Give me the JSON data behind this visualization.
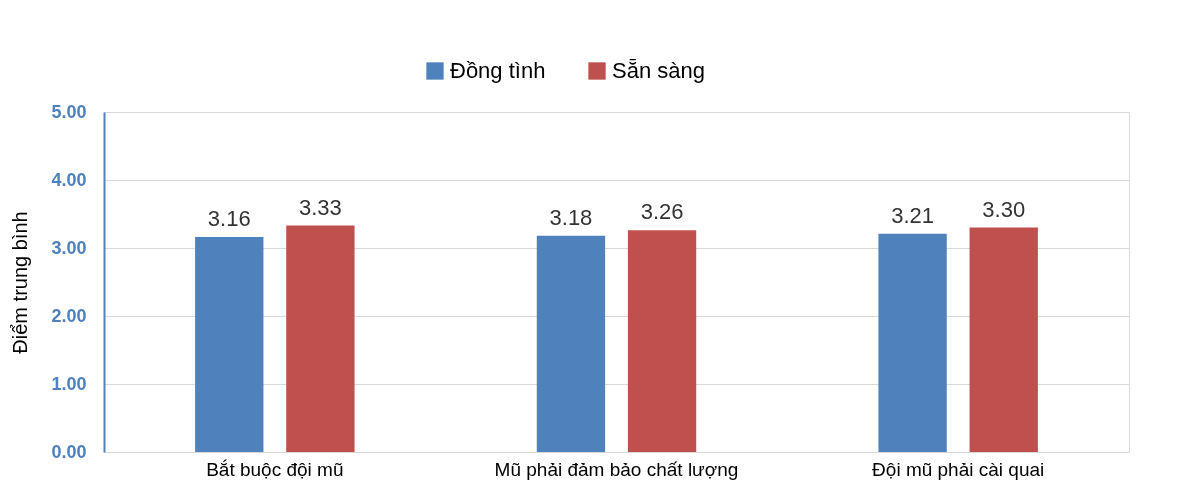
{
  "chart_data": {
    "type": "bar",
    "ylabel": "Điểm trung bình",
    "categories": [
      "Bắt buộc đội mũ",
      "Mũ phải đảm bảo chất lượng",
      "Đội mũ phải cài quai"
    ],
    "series": [
      {
        "name": "Đồng tình",
        "color": "#4f81bd",
        "values": [
          3.16,
          3.18,
          3.21
        ],
        "value_labels": [
          "3.16",
          "3.18",
          "3.21"
        ]
      },
      {
        "name": "Sẵn sàng",
        "color": "#c0504d",
        "values": [
          3.33,
          3.26,
          3.3
        ],
        "value_labels": [
          "3.33",
          "3.26",
          "3.30"
        ]
      }
    ],
    "ylim": [
      0,
      5
    ],
    "yticks": [
      {
        "value": 0,
        "label": "0.00"
      },
      {
        "value": 1,
        "label": "1.00"
      },
      {
        "value": 2,
        "label": "2.00"
      },
      {
        "value": 3,
        "label": "3.00"
      },
      {
        "value": 4,
        "label": "4.00"
      },
      {
        "value": 5,
        "label": "5.00"
      }
    ],
    "grid": "y",
    "legend": "top"
  }
}
